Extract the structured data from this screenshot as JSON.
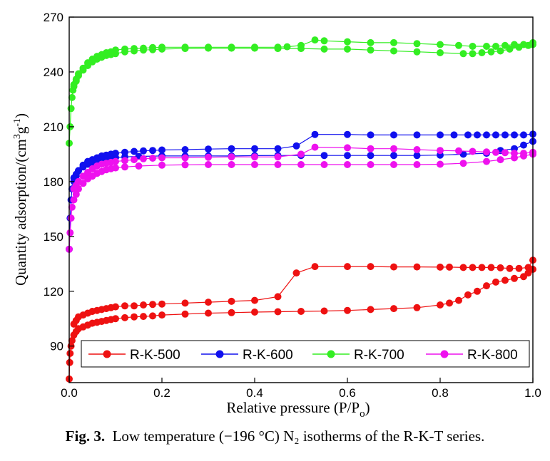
{
  "caption": {
    "label": "Fig. 3.",
    "text": "Low temperature (−196 °C) N₂ isotherms of the R-K-T series."
  },
  "chart_data": {
    "type": "line",
    "xlabel": "Relative pressure (P/Po)",
    "ylabel": "Quantity adsorption/(cm³g⁻¹)",
    "xlim": [
      0.0,
      1.0
    ],
    "ylim": [
      70,
      270
    ],
    "xticks": [
      "0.0",
      "0.2",
      "0.4",
      "0.6",
      "0.8",
      "1.0"
    ],
    "xtick_values": [
      0.0,
      0.2,
      0.4,
      0.6,
      0.8,
      1.0
    ],
    "yticks": [
      "90",
      "120",
      "150",
      "180",
      "210",
      "240",
      "270"
    ],
    "ytick_values": [
      90,
      120,
      150,
      180,
      210,
      240,
      270
    ],
    "grid": false,
    "legend_position": "bottom",
    "series": [
      {
        "name": "R-K-500",
        "color": "#ee1111",
        "adsorption": [
          [
            0.0,
            72
          ],
          [
            0.001,
            81
          ],
          [
            0.002,
            86
          ],
          [
            0.004,
            90
          ],
          [
            0.006,
            93
          ],
          [
            0.01,
            96
          ],
          [
            0.015,
            98
          ],
          [
            0.02,
            99.5
          ],
          [
            0.03,
            100.5
          ],
          [
            0.04,
            101.5
          ],
          [
            0.05,
            102.5
          ],
          [
            0.06,
            103
          ],
          [
            0.07,
            103.5
          ],
          [
            0.08,
            104
          ],
          [
            0.09,
            104.5
          ],
          [
            0.1,
            105
          ],
          [
            0.12,
            105.5
          ],
          [
            0.14,
            106
          ],
          [
            0.16,
            106.2
          ],
          [
            0.18,
            106.5
          ],
          [
            0.2,
            107
          ],
          [
            0.25,
            107.5
          ],
          [
            0.3,
            108
          ],
          [
            0.35,
            108.3
          ],
          [
            0.4,
            108.6
          ],
          [
            0.45,
            108.8
          ],
          [
            0.5,
            109
          ],
          [
            0.55,
            109.2
          ],
          [
            0.6,
            109.5
          ],
          [
            0.65,
            110
          ],
          [
            0.7,
            110.5
          ],
          [
            0.75,
            111
          ],
          [
            0.8,
            112.5
          ],
          [
            0.82,
            113.5
          ],
          [
            0.84,
            115
          ],
          [
            0.86,
            118
          ],
          [
            0.88,
            120
          ],
          [
            0.9,
            123
          ],
          [
            0.92,
            125
          ],
          [
            0.94,
            126
          ],
          [
            0.96,
            127
          ],
          [
            0.98,
            128
          ],
          [
            0.99,
            130
          ],
          [
            1.0,
            132
          ]
        ],
        "desorption": [
          [
            1.0,
            137
          ],
          [
            0.99,
            133
          ],
          [
            0.97,
            132.5
          ],
          [
            0.95,
            132.5
          ],
          [
            0.93,
            132.8
          ],
          [
            0.91,
            133
          ],
          [
            0.89,
            133
          ],
          [
            0.87,
            133
          ],
          [
            0.85,
            133
          ],
          [
            0.82,
            133.2
          ],
          [
            0.8,
            133.2
          ],
          [
            0.75,
            133.3
          ],
          [
            0.7,
            133.3
          ],
          [
            0.65,
            133.5
          ],
          [
            0.6,
            133.5
          ],
          [
            0.53,
            133.5
          ],
          [
            0.49,
            130
          ],
          [
            0.45,
            117
          ],
          [
            0.4,
            115
          ],
          [
            0.35,
            114.5
          ],
          [
            0.3,
            114
          ],
          [
            0.25,
            113.5
          ],
          [
            0.2,
            113
          ],
          [
            0.18,
            112.8
          ],
          [
            0.16,
            112.5
          ],
          [
            0.14,
            112
          ],
          [
            0.12,
            112
          ],
          [
            0.1,
            111.5
          ],
          [
            0.09,
            111
          ],
          [
            0.08,
            110.5
          ],
          [
            0.07,
            110
          ],
          [
            0.06,
            109.5
          ],
          [
            0.05,
            109
          ],
          [
            0.04,
            108
          ],
          [
            0.03,
            107
          ],
          [
            0.02,
            106
          ],
          [
            0.015,
            104
          ],
          [
            0.01,
            102
          ]
        ]
      },
      {
        "name": "R-K-600",
        "color": "#1010ee",
        "adsorption": [
          [
            0.0,
            143
          ],
          [
            0.002,
            160
          ],
          [
            0.004,
            170
          ],
          [
            0.006,
            176
          ],
          [
            0.01,
            180
          ],
          [
            0.015,
            183
          ],
          [
            0.02,
            186
          ],
          [
            0.03,
            188
          ],
          [
            0.04,
            189.5
          ],
          [
            0.05,
            190.5
          ],
          [
            0.06,
            191.5
          ],
          [
            0.07,
            192
          ],
          [
            0.08,
            192.5
          ],
          [
            0.09,
            193
          ],
          [
            0.1,
            193.2
          ],
          [
            0.12,
            193.5
          ],
          [
            0.15,
            193.8
          ],
          [
            0.2,
            194
          ],
          [
            0.25,
            194
          ],
          [
            0.3,
            194
          ],
          [
            0.35,
            194
          ],
          [
            0.4,
            194.2
          ],
          [
            0.45,
            194.3
          ],
          [
            0.5,
            194.3
          ],
          [
            0.55,
            194.3
          ],
          [
            0.6,
            194.3
          ],
          [
            0.65,
            194.3
          ],
          [
            0.7,
            194.3
          ],
          [
            0.75,
            194.3
          ],
          [
            0.8,
            194.5
          ],
          [
            0.85,
            195
          ],
          [
            0.9,
            195.5
          ],
          [
            0.93,
            197
          ],
          [
            0.96,
            198
          ],
          [
            0.98,
            200
          ],
          [
            1.0,
            202
          ]
        ],
        "desorption": [
          [
            1.0,
            206
          ],
          [
            0.98,
            205.5
          ],
          [
            0.96,
            205.5
          ],
          [
            0.94,
            205.5
          ],
          [
            0.92,
            205.5
          ],
          [
            0.9,
            205.5
          ],
          [
            0.88,
            205.5
          ],
          [
            0.86,
            205.5
          ],
          [
            0.83,
            205.5
          ],
          [
            0.8,
            205.5
          ],
          [
            0.75,
            205.5
          ],
          [
            0.7,
            205.5
          ],
          [
            0.65,
            205.5
          ],
          [
            0.6,
            205.8
          ],
          [
            0.53,
            205.8
          ],
          [
            0.49,
            199.5
          ],
          [
            0.45,
            198
          ],
          [
            0.4,
            198
          ],
          [
            0.35,
            198
          ],
          [
            0.3,
            197.8
          ],
          [
            0.25,
            197.5
          ],
          [
            0.2,
            197.3
          ],
          [
            0.18,
            197
          ],
          [
            0.16,
            196.8
          ],
          [
            0.14,
            196.5
          ],
          [
            0.12,
            196
          ],
          [
            0.1,
            195.5
          ],
          [
            0.09,
            195
          ],
          [
            0.08,
            194.5
          ],
          [
            0.07,
            194
          ],
          [
            0.06,
            193
          ],
          [
            0.05,
            192
          ],
          [
            0.04,
            191
          ],
          [
            0.03,
            189
          ],
          [
            0.02,
            186
          ],
          [
            0.015,
            184
          ],
          [
            0.01,
            182
          ]
        ]
      },
      {
        "name": "R-K-700",
        "color": "#33ee22",
        "adsorption": [
          [
            0.0,
            201
          ],
          [
            0.002,
            210
          ],
          [
            0.004,
            220
          ],
          [
            0.006,
            226
          ],
          [
            0.008,
            230
          ],
          [
            0.01,
            232
          ],
          [
            0.015,
            235
          ],
          [
            0.02,
            238
          ],
          [
            0.03,
            241
          ],
          [
            0.04,
            243.5
          ],
          [
            0.05,
            245.5
          ],
          [
            0.06,
            247
          ],
          [
            0.07,
            248
          ],
          [
            0.08,
            249
          ],
          [
            0.09,
            249.5
          ],
          [
            0.1,
            250
          ],
          [
            0.12,
            251
          ],
          [
            0.14,
            251.5
          ],
          [
            0.16,
            252
          ],
          [
            0.18,
            252.2
          ],
          [
            0.2,
            252.5
          ],
          [
            0.25,
            252.8
          ],
          [
            0.3,
            253
          ],
          [
            0.35,
            253
          ],
          [
            0.4,
            253
          ],
          [
            0.45,
            252.8
          ],
          [
            0.5,
            252.8
          ],
          [
            0.55,
            252.5
          ],
          [
            0.6,
            252.5
          ],
          [
            0.65,
            252
          ],
          [
            0.7,
            251.5
          ],
          [
            0.75,
            251
          ],
          [
            0.8,
            250.5
          ],
          [
            0.85,
            250
          ],
          [
            0.87,
            250
          ],
          [
            0.89,
            250.5
          ],
          [
            0.91,
            251
          ],
          [
            0.93,
            251.5
          ],
          [
            0.95,
            252.5
          ],
          [
            0.97,
            253.5
          ],
          [
            0.99,
            254.5
          ],
          [
            1.0,
            255
          ]
        ],
        "desorption": [
          [
            1.0,
            256
          ],
          [
            0.98,
            255
          ],
          [
            0.96,
            255
          ],
          [
            0.94,
            254.5
          ],
          [
            0.92,
            254
          ],
          [
            0.9,
            254
          ],
          [
            0.87,
            254
          ],
          [
            0.84,
            254.5
          ],
          [
            0.8,
            255
          ],
          [
            0.75,
            255.5
          ],
          [
            0.7,
            256
          ],
          [
            0.65,
            256
          ],
          [
            0.6,
            256.5
          ],
          [
            0.55,
            257
          ],
          [
            0.53,
            257.5
          ],
          [
            0.5,
            254.5
          ],
          [
            0.47,
            253.8
          ],
          [
            0.45,
            253.5
          ],
          [
            0.4,
            253.5
          ],
          [
            0.35,
            253.5
          ],
          [
            0.3,
            253.5
          ],
          [
            0.25,
            253.5
          ],
          [
            0.2,
            253.5
          ],
          [
            0.18,
            253.3
          ],
          [
            0.16,
            253
          ],
          [
            0.14,
            252.8
          ],
          [
            0.12,
            252.5
          ],
          [
            0.1,
            252
          ],
          [
            0.09,
            251
          ],
          [
            0.08,
            250.5
          ],
          [
            0.07,
            249.5
          ],
          [
            0.06,
            248.5
          ],
          [
            0.05,
            247
          ],
          [
            0.04,
            245
          ],
          [
            0.03,
            242
          ],
          [
            0.02,
            239
          ],
          [
            0.015,
            236
          ],
          [
            0.01,
            233
          ]
        ]
      },
      {
        "name": "R-K-800",
        "color": "#ee11ee",
        "adsorption": [
          [
            0.0,
            143
          ],
          [
            0.002,
            152
          ],
          [
            0.004,
            160
          ],
          [
            0.006,
            166
          ],
          [
            0.01,
            170
          ],
          [
            0.015,
            173
          ],
          [
            0.02,
            176
          ],
          [
            0.03,
            179
          ],
          [
            0.04,
            181.5
          ],
          [
            0.05,
            183
          ],
          [
            0.06,
            184.5
          ],
          [
            0.07,
            185.5
          ],
          [
            0.08,
            186.5
          ],
          [
            0.09,
            187
          ],
          [
            0.1,
            187.5
          ],
          [
            0.12,
            188
          ],
          [
            0.15,
            188.5
          ],
          [
            0.2,
            189
          ],
          [
            0.25,
            189.2
          ],
          [
            0.3,
            189.3
          ],
          [
            0.35,
            189.3
          ],
          [
            0.4,
            189.3
          ],
          [
            0.45,
            189.3
          ],
          [
            0.5,
            189.3
          ],
          [
            0.55,
            189.3
          ],
          [
            0.6,
            189.3
          ],
          [
            0.65,
            189.3
          ],
          [
            0.7,
            189.3
          ],
          [
            0.75,
            189.3
          ],
          [
            0.8,
            189.5
          ],
          [
            0.85,
            190
          ],
          [
            0.9,
            191
          ],
          [
            0.93,
            192
          ],
          [
            0.96,
            193
          ],
          [
            0.98,
            194
          ],
          [
            1.0,
            195
          ]
        ],
        "desorption": [
          [
            1.0,
            196
          ],
          [
            0.98,
            195.5
          ],
          [
            0.96,
            195.5
          ],
          [
            0.94,
            195.8
          ],
          [
            0.92,
            196
          ],
          [
            0.9,
            196.2
          ],
          [
            0.87,
            196.5
          ],
          [
            0.84,
            196.8
          ],
          [
            0.8,
            197
          ],
          [
            0.75,
            197.5
          ],
          [
            0.7,
            198
          ],
          [
            0.65,
            198
          ],
          [
            0.6,
            198.5
          ],
          [
            0.53,
            198.8
          ],
          [
            0.5,
            195
          ],
          [
            0.45,
            193.5
          ],
          [
            0.4,
            193.5
          ],
          [
            0.35,
            193.5
          ],
          [
            0.3,
            193.3
          ],
          [
            0.25,
            193
          ],
          [
            0.2,
            193
          ],
          [
            0.18,
            192.8
          ],
          [
            0.16,
            192.5
          ],
          [
            0.14,
            192
          ],
          [
            0.12,
            191.5
          ],
          [
            0.1,
            191
          ],
          [
            0.09,
            190.5
          ],
          [
            0.08,
            190
          ],
          [
            0.07,
            189.5
          ],
          [
            0.06,
            188.5
          ],
          [
            0.05,
            187
          ],
          [
            0.04,
            185
          ],
          [
            0.03,
            183
          ],
          [
            0.02,
            180
          ],
          [
            0.015,
            178
          ],
          [
            0.01,
            176
          ]
        ]
      }
    ]
  }
}
